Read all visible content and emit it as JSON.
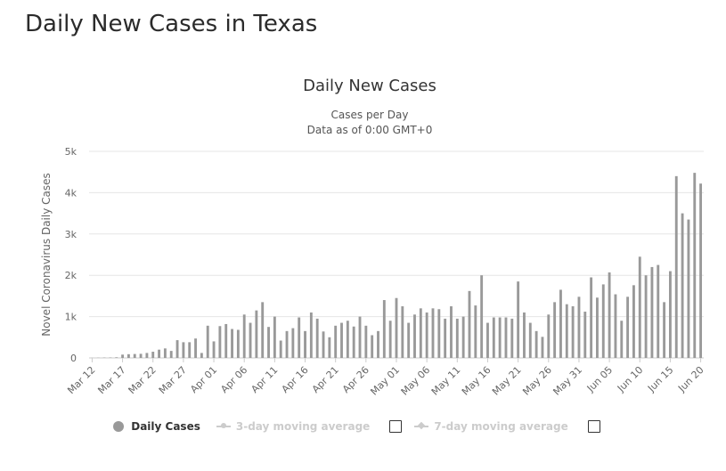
{
  "page": {
    "title": "Daily New Cases in Texas"
  },
  "chart_data": {
    "type": "bar",
    "title": "Daily New Cases",
    "subtitle": "Cases per Day",
    "subtitle2": "Data as of 0:00 GMT+0",
    "xlabel": "",
    "ylabel": "Novel Coronavirus Daily Cases",
    "ylim": [
      0,
      5000
    ],
    "y_ticks": [
      0,
      1000,
      2000,
      3000,
      4000,
      5000
    ],
    "y_tick_labels": [
      "0",
      "1k",
      "2k",
      "3k",
      "4k",
      "5k"
    ],
    "grid": true,
    "legend_position": "bottom",
    "bar_color": "#999999",
    "categories_start": "Mar 12",
    "x_tick_labels": [
      "Mar 12",
      "Mar 17",
      "Mar 22",
      "Mar 27",
      "Apr 01",
      "Apr 06",
      "Apr 11",
      "Apr 16",
      "Apr 21",
      "Apr 26",
      "May 01",
      "May 06",
      "May 11",
      "May 16",
      "May 21",
      "May 26",
      "May 31",
      "Jun 05",
      "Jun 10",
      "Jun 15",
      "Jun 20"
    ],
    "series": [
      {
        "name": "Daily Cases",
        "values": [
          2,
          5,
          8,
          10,
          15,
          80,
          90,
          95,
          100,
          120,
          150,
          200,
          230,
          170,
          430,
          380,
          380,
          470,
          120,
          780,
          400,
          770,
          820,
          700,
          680,
          1050,
          850,
          1150,
          1350,
          750,
          1000,
          420,
          650,
          720,
          980,
          650,
          1100,
          950,
          640,
          500,
          780,
          850,
          900,
          760,
          1000,
          780,
          550,
          650,
          1400,
          900,
          1450,
          1250,
          850,
          1050,
          1200,
          1100,
          1200,
          1180,
          950,
          1250,
          950,
          1000,
          1620,
          1270,
          2000,
          850,
          980,
          980,
          980,
          950,
          1850,
          1100,
          850,
          650,
          510,
          1050,
          1350,
          1650,
          1300,
          1250,
          1480,
          1120,
          1950,
          1460,
          1780,
          2070,
          1540,
          900,
          1480,
          1760,
          2450,
          2000,
          2200,
          2250,
          1350,
          2100,
          4400,
          3500,
          3350,
          4480,
          4220
        ]
      }
    ],
    "legend": [
      {
        "label": "Daily Cases",
        "active": true
      },
      {
        "label": "3-day moving average",
        "active": false
      },
      {
        "label": "7-day moving average",
        "active": false
      }
    ]
  }
}
